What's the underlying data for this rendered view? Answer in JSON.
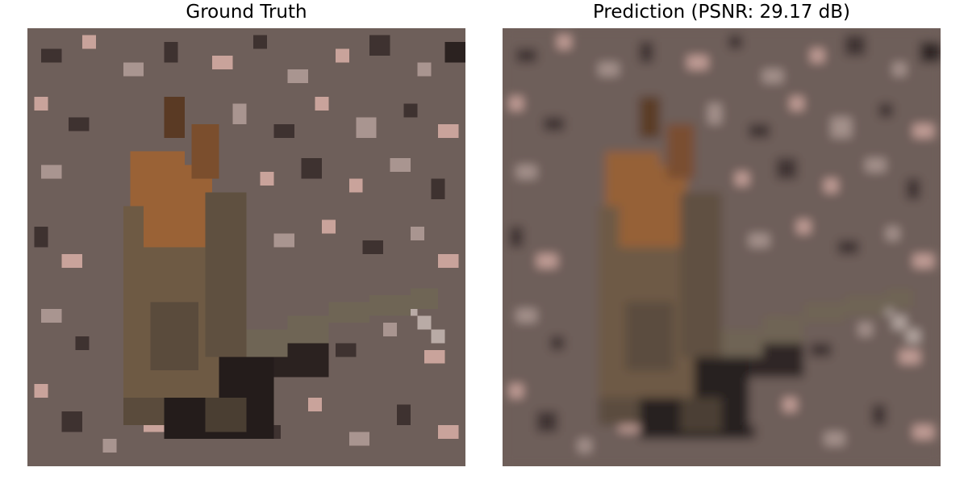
{
  "figure": {
    "panels": [
      {
        "title": "Ground Truth",
        "image_subject": "a small brown primate sitting on gravelly ground",
        "style": "sharp, blocky low-resolution pixels"
      },
      {
        "title": "Prediction (PSNR: 29.17 dB)",
        "image_subject": "blurred reconstruction of the same primate on gravel",
        "style": "smooth, blurred pixels"
      }
    ]
  },
  "colors": {
    "ground_base": "#6e5f5a",
    "ground_dark": "#3e3230",
    "pebble_pink": "#c9a39b",
    "pebble_light": "#a99590",
    "fur_orange": "#9a6236",
    "fur_brown": "#6e5a44",
    "tail_gray": "#6f6555",
    "shadow": "#241c1b"
  }
}
